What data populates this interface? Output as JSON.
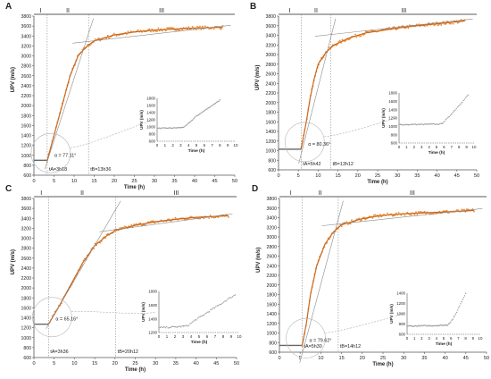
{
  "colors": {
    "points": "#ee8a2e",
    "fit": "#c8671e",
    "axis": "#555555",
    "tangent": "#8a8a8a",
    "inset": "#999999",
    "text": "#222222"
  },
  "chart_data": [
    {
      "type": "scatter",
      "panel_label": "A",
      "xlabel": "Time (h)",
      "ylabel": "UPV (m/s)",
      "xlim": [
        0,
        50
      ],
      "ylim": [
        600,
        3800
      ],
      "xticks": [
        "0",
        "5",
        "10",
        "15",
        "20",
        "25",
        "30",
        "35",
        "40",
        "45",
        "50"
      ],
      "yticks": [
        "600",
        "800",
        "1000",
        "1200",
        "1400",
        "1600",
        "1800",
        "2000",
        "2200",
        "2400",
        "2600",
        "2800",
        "3000",
        "3200",
        "3400",
        "3600",
        "3800"
      ],
      "stages": [
        "I",
        "II",
        "III"
      ],
      "stage_bounds": [
        0,
        3.3,
        13.6,
        50
      ],
      "tA": "tA=3h18",
      "tB": "tB=13h36",
      "angle": "α = 77.11°",
      "baseline": 900,
      "fit_points": [
        [
          3.3,
          900
        ],
        [
          5,
          1400
        ],
        [
          7,
          2000
        ],
        [
          9,
          2600
        ],
        [
          11,
          3000
        ],
        [
          13,
          3180
        ],
        [
          15,
          3300
        ],
        [
          20,
          3420
        ],
        [
          25,
          3480
        ],
        [
          30,
          3520
        ],
        [
          35,
          3540
        ],
        [
          40,
          3560
        ],
        [
          45,
          3570
        ],
        [
          47,
          3575
        ]
      ],
      "inset": {
        "xlabel": "Time (h)",
        "ylabel": "UPV (m/s)",
        "xticks": [
          "0",
          "1",
          "2",
          "3",
          "4",
          "5",
          "6",
          "7",
          "8",
          "9",
          "10"
        ],
        "yticks": [
          "600",
          "800",
          "1000",
          "1200",
          "1400",
          "1600",
          "1800"
        ],
        "points": [
          [
            0,
            960
          ],
          [
            1,
            965
          ],
          [
            2,
            970
          ],
          [
            3,
            980
          ],
          [
            3.5,
            1000
          ],
          [
            4,
            1100
          ],
          [
            5,
            1300
          ],
          [
            6,
            1450
          ],
          [
            7,
            1600
          ],
          [
            8,
            1750
          ]
        ]
      }
    },
    {
      "type": "scatter",
      "panel_label": "B",
      "xlabel": "Time (h)",
      "ylabel": "UPV (m/s)",
      "xlim": [
        0,
        50
      ],
      "ylim": [
        600,
        3800
      ],
      "xticks": [
        "0",
        "5",
        "10",
        "15",
        "20",
        "25",
        "30",
        "35",
        "40",
        "45",
        "50"
      ],
      "yticks": [
        "600",
        "800",
        "1000",
        "1200",
        "1400",
        "1600",
        "1800",
        "2000",
        "2200",
        "2400",
        "2600",
        "2800",
        "3000",
        "3200",
        "3400",
        "3600",
        "3800"
      ],
      "stages": [
        "I",
        "II",
        "III"
      ],
      "stage_bounds": [
        0,
        5.7,
        13.2,
        50
      ],
      "tA": "tA=5h42",
      "tB": "tB=13h12",
      "angle": "α = 80.36°",
      "baseline": 1030,
      "fit_points": [
        [
          5.7,
          1030
        ],
        [
          7,
          1600
        ],
        [
          8,
          2100
        ],
        [
          9,
          2500
        ],
        [
          10,
          2800
        ],
        [
          12,
          3050
        ],
        [
          14,
          3200
        ],
        [
          18,
          3350
        ],
        [
          22,
          3450
        ],
        [
          26,
          3500
        ],
        [
          30,
          3550
        ],
        [
          35,
          3600
        ],
        [
          40,
          3640
        ],
        [
          45,
          3680
        ],
        [
          47,
          3700
        ]
      ],
      "inset": {
        "xlabel": "Time (h)",
        "ylabel": "UPV (m/s)",
        "xticks": [
          "0",
          "1",
          "2",
          "3",
          "4",
          "5",
          "6",
          "7",
          "8",
          "9",
          "10"
        ],
        "yticks": [
          "600",
          "800",
          "1000",
          "1200",
          "1400",
          "1600",
          "1800"
        ],
        "points": [
          [
            0,
            1040
          ],
          [
            1,
            1040
          ],
          [
            2,
            1045
          ],
          [
            3,
            1045
          ],
          [
            4,
            1050
          ],
          [
            5,
            1050
          ],
          [
            5.7,
            1060
          ],
          [
            6.5,
            1200
          ],
          [
            7.5,
            1400
          ],
          [
            8.5,
            1600
          ],
          [
            9.2,
            1750
          ]
        ]
      }
    },
    {
      "type": "scatter",
      "panel_label": "C",
      "xlabel": "Time (h)",
      "ylabel": "UPV (m/s)",
      "xlim": [
        0,
        50
      ],
      "ylim": [
        600,
        3800
      ],
      "xticks": [
        "0",
        "5",
        "10",
        "15",
        "20",
        "25",
        "30",
        "35",
        "40",
        "45",
        "50"
      ],
      "yticks": [
        "600",
        "800",
        "1000",
        "1200",
        "1400",
        "1600",
        "1800",
        "2000",
        "2200",
        "2400",
        "2600",
        "2800",
        "3000",
        "3200",
        "3400",
        "3600",
        "3800"
      ],
      "stages": [
        "I",
        "II",
        "III"
      ],
      "stage_bounds": [
        0,
        3.6,
        20.2,
        50
      ],
      "tA": "tA=3h36",
      "tB": "tB=20h12",
      "angle": "α = 65.16°",
      "baseline": 1270,
      "fit_points": [
        [
          3.6,
          1270
        ],
        [
          6,
          1600
        ],
        [
          9,
          2050
        ],
        [
          12,
          2500
        ],
        [
          15,
          2850
        ],
        [
          18,
          3050
        ],
        [
          20,
          3150
        ],
        [
          25,
          3260
        ],
        [
          30,
          3330
        ],
        [
          35,
          3380
        ],
        [
          40,
          3420
        ],
        [
          45,
          3440
        ],
        [
          48,
          3450
        ]
      ],
      "inset": {
        "xlabel": "Time (h)",
        "ylabel": "UPV (m/s)",
        "xticks": [
          "0",
          "1",
          "2",
          "3",
          "4",
          "5",
          "6",
          "7",
          "8",
          "9",
          "10"
        ],
        "yticks": [
          "1200",
          "1400",
          "1600",
          "1800"
        ],
        "points": [
          [
            0,
            1270
          ],
          [
            1,
            1275
          ],
          [
            2,
            1280
          ],
          [
            3,
            1290
          ],
          [
            3.6,
            1300
          ],
          [
            4.5,
            1380
          ],
          [
            5.5,
            1450
          ],
          [
            6.5,
            1530
          ],
          [
            7.5,
            1600
          ],
          [
            8.5,
            1680
          ],
          [
            9.5,
            1750
          ]
        ]
      }
    },
    {
      "type": "scatter",
      "panel_label": "D",
      "xlabel": "Time (h)",
      "ylabel": "UPV (m/s)",
      "xlim": [
        0,
        50
      ],
      "ylim": [
        600,
        3800
      ],
      "xticks": [
        "0",
        "5",
        "10",
        "15",
        "20",
        "25",
        "30",
        "35",
        "40",
        "45",
        "50"
      ],
      "yticks": [
        "600",
        "800",
        "1000",
        "1200",
        "1400",
        "1600",
        "1800",
        "2000",
        "2200",
        "2400",
        "2600",
        "2800",
        "3000",
        "3200",
        "3400",
        "3600",
        "3800"
      ],
      "stages": [
        "I",
        "II",
        "III"
      ],
      "stage_bounds": [
        0,
        5.5,
        14.2,
        50
      ],
      "tA": "tA=5h30",
      "tB": "tB=14h12",
      "angle": "α = 79.62°",
      "baseline": 740,
      "fit_points": [
        [
          5.5,
          740
        ],
        [
          6.5,
          1200
        ],
        [
          7.5,
          1800
        ],
        [
          9,
          2400
        ],
        [
          11,
          2850
        ],
        [
          13,
          3100
        ],
        [
          15,
          3250
        ],
        [
          20,
          3380
        ],
        [
          25,
          3450
        ],
        [
          30,
          3480
        ],
        [
          35,
          3500
        ],
        [
          40,
          3520
        ],
        [
          45,
          3540
        ],
        [
          47,
          3550
        ]
      ],
      "inset": {
        "xlabel": "Time (h)",
        "ylabel": "UPV (m/s)",
        "xticks": [
          "0",
          "1",
          "2",
          "3",
          "4",
          "5",
          "6",
          "7",
          "8",
          "9",
          "10"
        ],
        "yticks": [
          "600",
          "800",
          "1000",
          "1200",
          "1400"
        ],
        "points": [
          [
            0,
            760
          ],
          [
            1,
            760
          ],
          [
            2,
            765
          ],
          [
            3,
            765
          ],
          [
            4,
            770
          ],
          [
            5,
            775
          ],
          [
            5.5,
            780
          ],
          [
            6,
            850
          ],
          [
            6.5,
            950
          ],
          [
            7,
            1100
          ],
          [
            7.5,
            1250
          ],
          [
            8,
            1400
          ]
        ]
      }
    }
  ]
}
